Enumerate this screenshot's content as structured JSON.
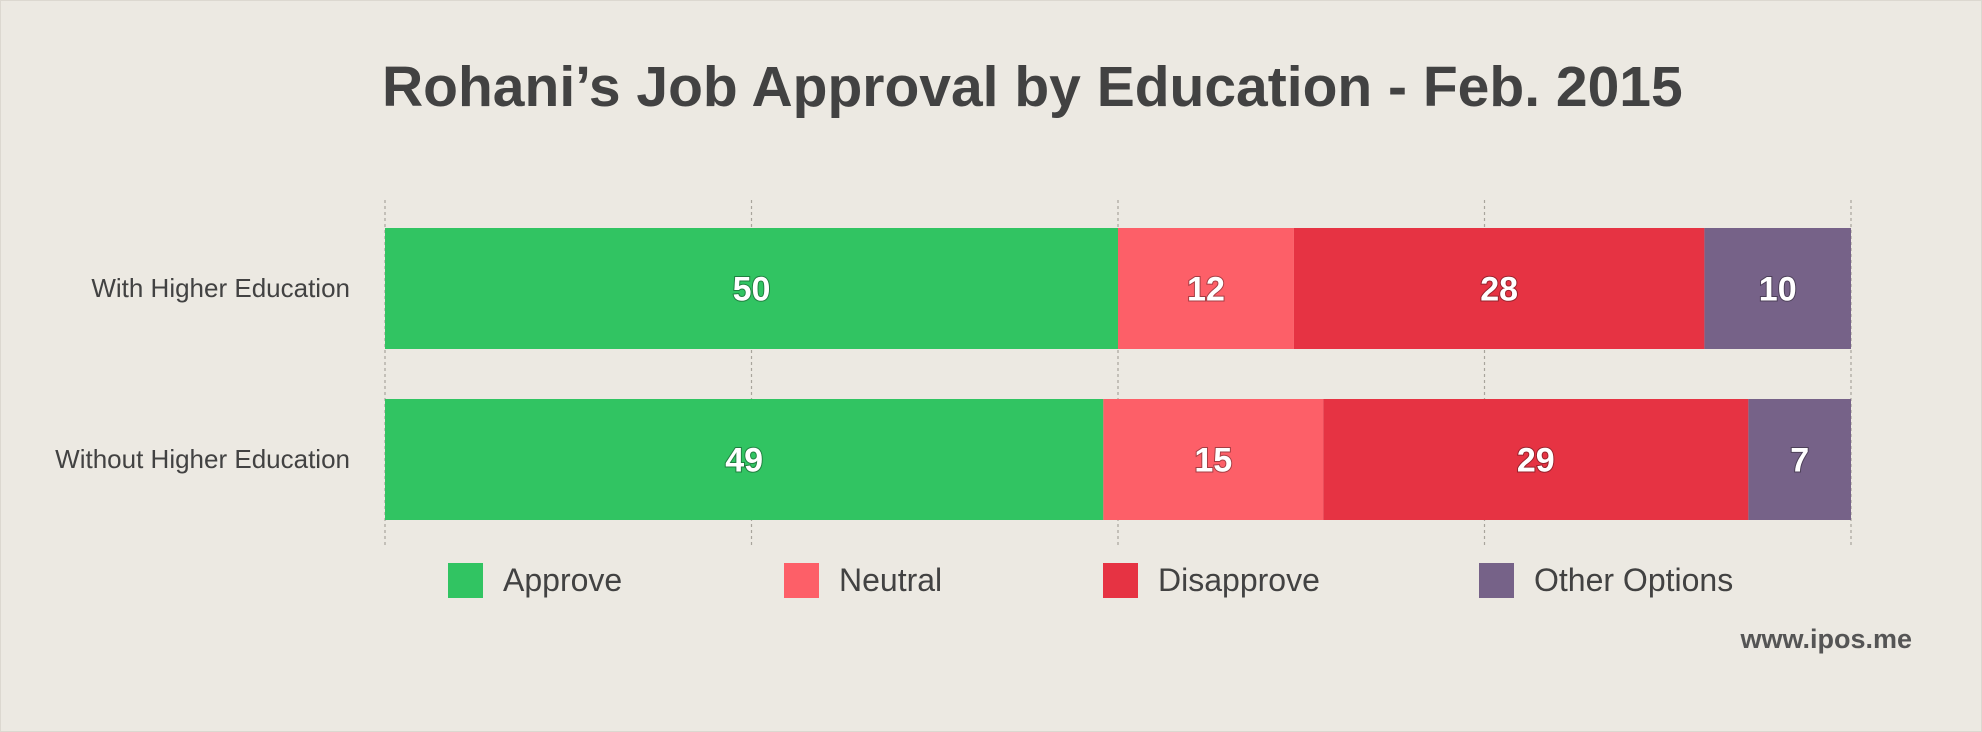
{
  "chart_data": {
    "type": "bar",
    "orientation": "horizontal",
    "stacked": true,
    "title": "Rohani’s Job Approval by Education - Feb. 2015",
    "categories": [
      "With Higher Education",
      "Without Higher Education"
    ],
    "series": [
      {
        "name": "Approve",
        "color": "#31c462",
        "values": [
          50,
          49
        ]
      },
      {
        "name": "Neutral",
        "color": "#fd5f68",
        "values": [
          12,
          15
        ]
      },
      {
        "name": "Disapprove",
        "color": "#e63343",
        "values": [
          28,
          29
        ]
      },
      {
        "name": "Other Options",
        "color": "#766288",
        "values": [
          10,
          7
        ]
      }
    ],
    "xlim": [
      0,
      100
    ],
    "grid": true,
    "legend": "bottom"
  },
  "source": "www.ipos.me"
}
